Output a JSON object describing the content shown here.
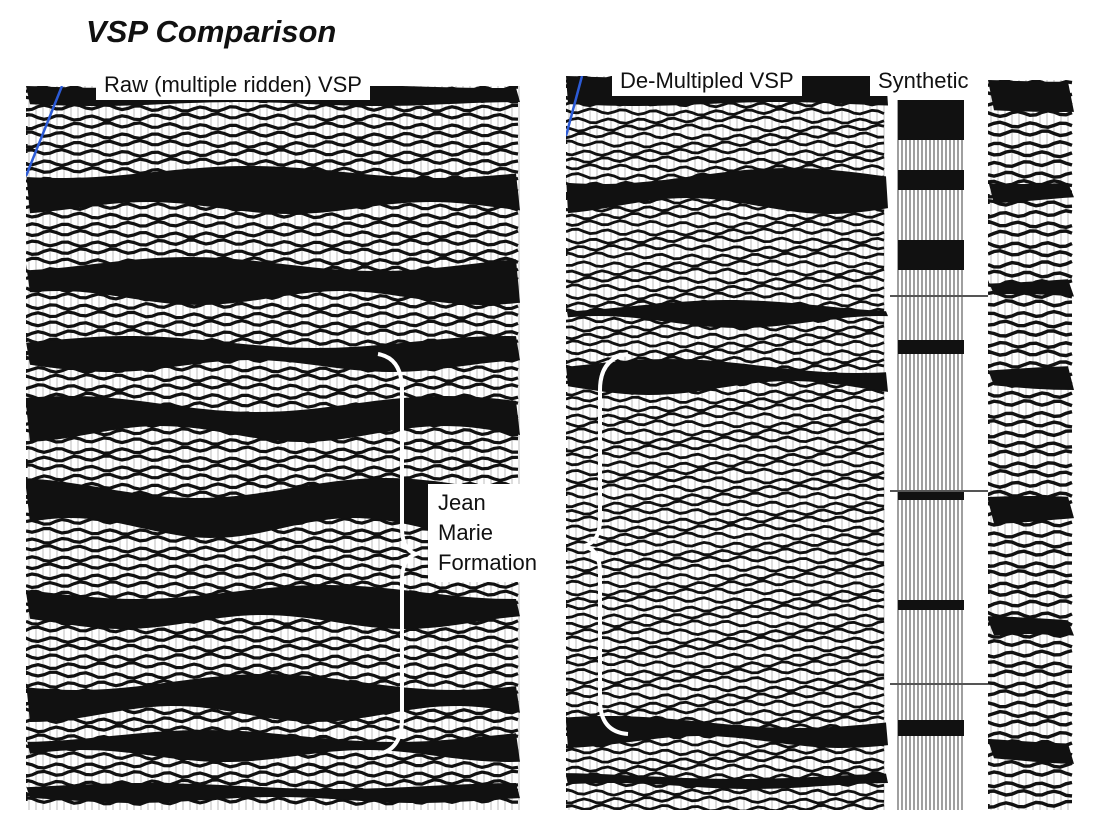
{
  "title": "VSP Comparison",
  "panels": {
    "raw": {
      "label": "Raw (multiple ridden) VSP"
    },
    "demultipled": {
      "label": "De-Multipled VSP"
    },
    "synthetic": {
      "label": "Synthetic"
    }
  },
  "annotation": {
    "lines": [
      "Jean",
      "Marie",
      "Formation"
    ]
  },
  "colors": {
    "trace": "#111111",
    "background": "#ffffff",
    "first_break_line": "#2c5bd6",
    "brace": "#ffffff"
  }
}
